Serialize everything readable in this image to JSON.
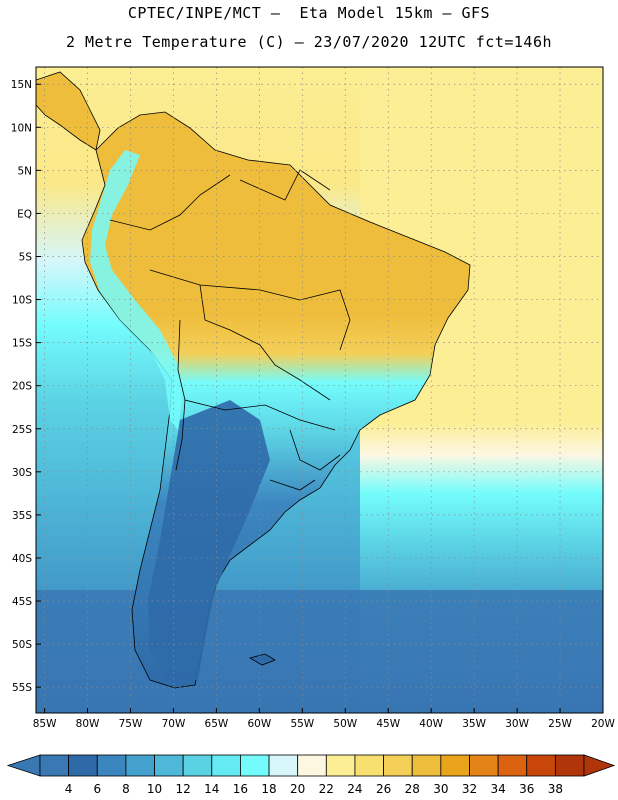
{
  "header": {
    "line1": "CPTEC/INPE/MCT –  Eta Model 15km – GFS",
    "line2": "2 Metre Temperature (C) – 23/07/2020 12UTC fct=146h"
  },
  "map": {
    "lat_labels": [
      "15N",
      "10N",
      "5N",
      "EQ",
      "5S",
      "10S",
      "15S",
      "20S",
      "25S",
      "30S",
      "35S",
      "40S",
      "45S",
      "50S",
      "55S"
    ],
    "lat_values": [
      15,
      10,
      5,
      0,
      -5,
      -10,
      -15,
      -20,
      -25,
      -30,
      -35,
      -40,
      -45,
      -50,
      -55
    ],
    "lon_labels": [
      "85W",
      "80W",
      "75W",
      "70W",
      "65W",
      "60W",
      "55W",
      "50W",
      "45W",
      "40W",
      "35W",
      "30W",
      "25W",
      "20W"
    ],
    "lon_values": [
      -85,
      -80,
      -75,
      -70,
      -65,
      -60,
      -55,
      -50,
      -45,
      -40,
      -35,
      -30,
      -25,
      -20
    ],
    "lon_range": [
      -86,
      -20
    ],
    "lat_range": [
      -58,
      17
    ],
    "grid": "dotted"
  },
  "colorbar": {
    "labels": [
      "4",
      "6",
      "8",
      "10",
      "12",
      "14",
      "16",
      "18",
      "20",
      "22",
      "24",
      "26",
      "28",
      "30",
      "32",
      "34",
      "36",
      "38"
    ],
    "colors": [
      "#3a78b4",
      "#2f6aa8",
      "#3c86bf",
      "#44a0cc",
      "#4eb8d8",
      "#5bd2e4",
      "#64eaf2",
      "#74fcfc",
      "#d6f6fa",
      "#fdf7e2",
      "#fbee94",
      "#f7e070",
      "#f3cf58",
      "#efbd3c",
      "#eaa41c",
      "#e48418",
      "#da6210",
      "#c8460a",
      "#b0350a"
    ]
  }
}
